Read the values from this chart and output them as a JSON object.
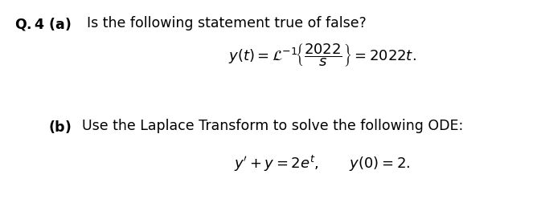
{
  "background_color": "#ffffff",
  "figsize": [
    6.68,
    2.58
  ],
  "dpi": 100,
  "part_a_bold": "Q.4 (a)",
  "part_a_normal": " Is the following statement true of false?",
  "formula": "$y(t) = \\mathcal{L}^{-1}\\!\\left\\{\\dfrac{2022}{s}\\right\\} = 2022t.$",
  "part_b_bold": "(b)",
  "part_b_normal": " Use the Laplace Transform to solve the following ODE:",
  "ode": "$y' + y = 2e^{t}, \\qquad y(0) = 2.$",
  "fontsize_heading": 12.5,
  "fontsize_formula": 13,
  "text_color": "#000000"
}
